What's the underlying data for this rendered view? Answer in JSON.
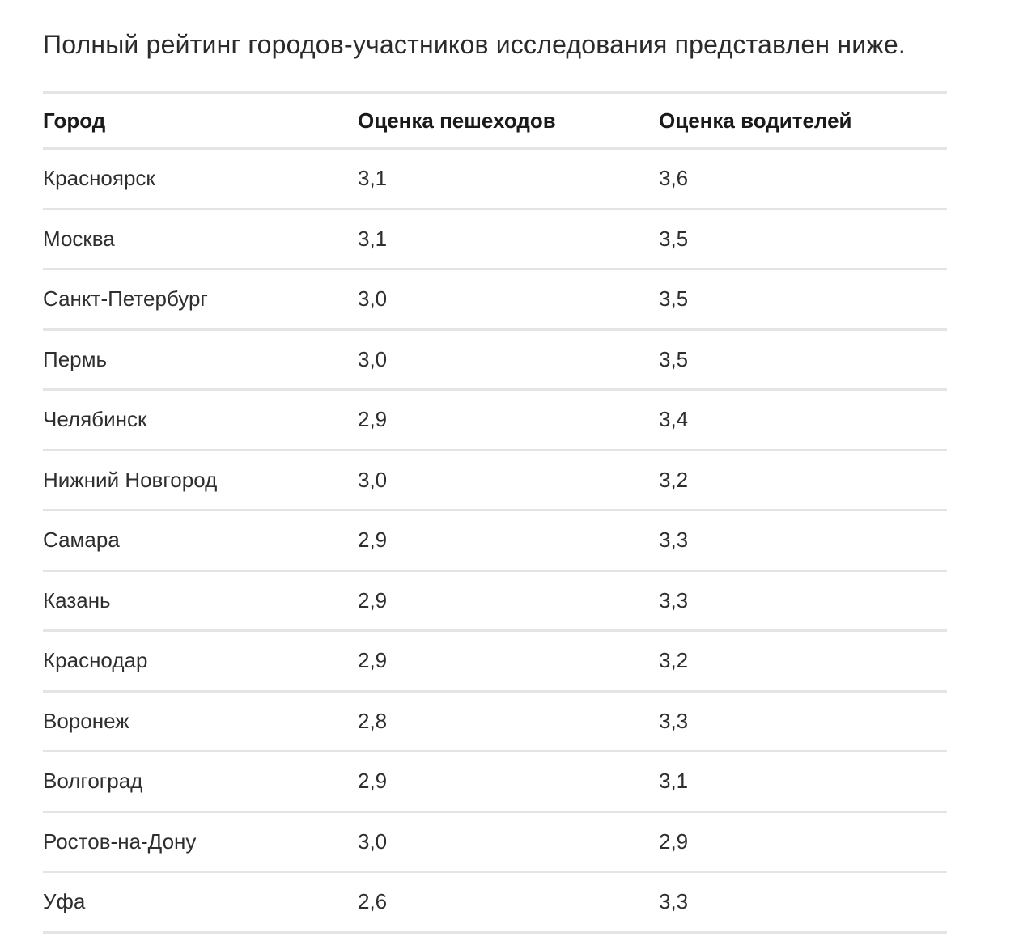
{
  "intro": "Полный рейтинг городов-участников исследования представлен ниже.",
  "table": {
    "headers": [
      "Город",
      "Оценка пешеходов",
      "Оценка водителей"
    ],
    "rows": [
      [
        "Красноярск",
        "3,1",
        "3,6"
      ],
      [
        "Москва",
        "3,1",
        "3,5"
      ],
      [
        "Санкт-Петербург",
        "3,0",
        "3,5"
      ],
      [
        "Пермь",
        "3,0",
        "3,5"
      ],
      [
        "Челябинск",
        "2,9",
        "3,4"
      ],
      [
        "Нижний Новгород",
        "3,0",
        "3,2"
      ],
      [
        "Самара",
        "2,9",
        "3,3"
      ],
      [
        "Казань",
        "2,9",
        "3,3"
      ],
      [
        "Краснодар",
        "2,9",
        "3,2"
      ],
      [
        "Воронеж",
        "2,8",
        "3,3"
      ],
      [
        "Волгоград",
        "2,9",
        "3,1"
      ],
      [
        "Ростов-на-Дону",
        "3,0",
        "2,9"
      ],
      [
        "Уфа",
        "2,6",
        "3,3"
      ]
    ]
  }
}
